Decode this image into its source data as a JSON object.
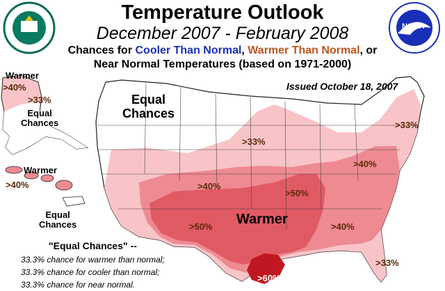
{
  "title": "Temperature Outlook",
  "subtitle": "December 2007 - February 2008",
  "legend": {
    "prefix": "Chances for ",
    "cooler": "Cooler Than Normal",
    "sep": ", ",
    "warmer": "Warmer Than Normal",
    "suffix": ", or",
    "line2": "Near Normal Temperatures (based on 1971-2000)"
  },
  "issued": "Issued October 18, 2007",
  "colors": {
    "light": "#f8c4c8",
    "mid": "#ee8a92",
    "dark": "#e05a64",
    "darkest": "#c01820"
  },
  "alaska": {
    "label": "Warmer",
    "p1": ">40%",
    "p2": ">33%",
    "equal": "Equal\nChances"
  },
  "hawaii": {
    "label": "Warmer",
    "p1": ">40%"
  },
  "pr_equal": "Equal\nChances",
  "conus": {
    "equal_label": "Equal\nChances",
    "warmer_label": "Warmer",
    "pcts": {
      "ne": ">33%",
      "plains": ">33%",
      "mw": ">40%",
      "sw40": ">40%",
      "tx50": ">50%",
      "south50": ">50%",
      "se40": ">40%",
      "fl33": ">33%",
      "tx60": ">60%"
    }
  },
  "notes": {
    "title": "\"Equal Chances\" --",
    "l1": "33.3% chance for warmer than normal;",
    "l2": "33.3% chance for cooler than normal;",
    "l3": "33.3% chance for near normal."
  },
  "logos": {
    "doc": "DEPARTMENT OF COMMERCE · UNITED STATES OF AMERICA",
    "noaa": "NOAA",
    "noaa_ring": "NATIONAL OCEANIC AND ATMOSPHERIC ADMINISTRATION · U.S. DEPARTMENT OF COMMERCE"
  }
}
